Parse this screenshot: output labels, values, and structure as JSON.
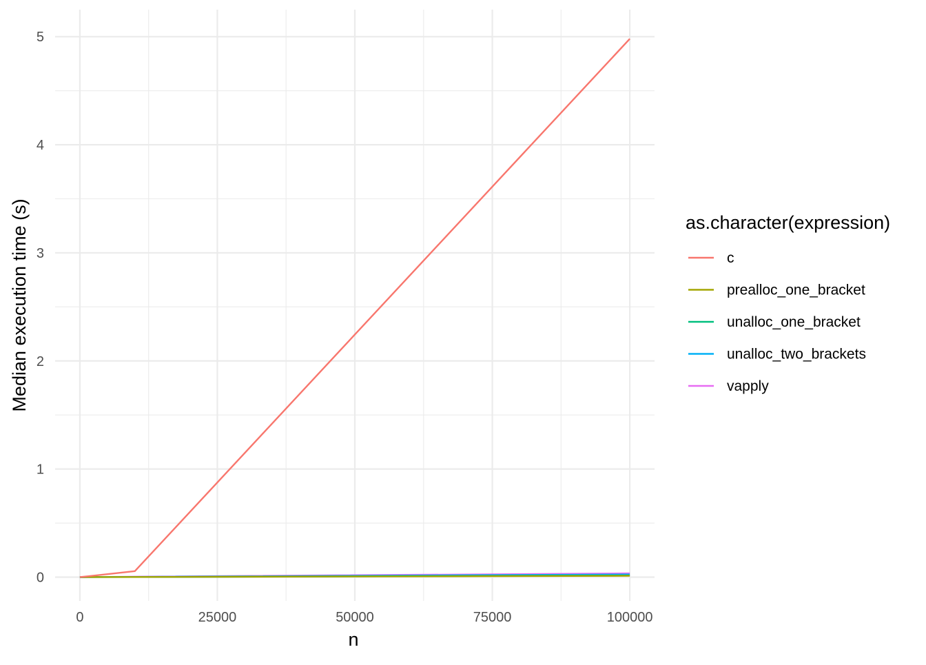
{
  "chart_data": {
    "type": "line",
    "title": "",
    "xlabel": "n",
    "ylabel": "Median execution time (s)",
    "xlim": [
      -4500,
      104500
    ],
    "ylim": [
      -0.22,
      5.25
    ],
    "x_ticks": [
      0,
      25000,
      50000,
      75000,
      100000
    ],
    "x_tick_labels": [
      "0",
      "25000",
      "50000",
      "75000",
      "100000"
    ],
    "x_minor_ticks": [
      12500,
      37500,
      62500,
      87500
    ],
    "y_ticks": [
      0,
      1,
      2,
      3,
      4,
      5
    ],
    "y_tick_labels": [
      "0",
      "1",
      "2",
      "3",
      "4",
      "5"
    ],
    "y_minor_ticks": [
      0.5,
      1.5,
      2.5,
      3.5,
      4.5
    ],
    "grid": true,
    "legend": {
      "title": "as.character(expression)",
      "position": "right"
    },
    "series": [
      {
        "name": "c",
        "color": "#F8766D",
        "x": [
          0,
          10000,
          100000
        ],
        "y": [
          0.0,
          0.055,
          4.98
        ]
      },
      {
        "name": "prealloc_one_bracket",
        "color": "#A3A500",
        "x": [
          0,
          10000,
          100000
        ],
        "y": [
          0.0,
          0.001,
          0.012
        ]
      },
      {
        "name": "unalloc_one_bracket",
        "color": "#00BF7D",
        "x": [
          0,
          10000,
          100000
        ],
        "y": [
          0.0,
          0.001,
          0.015
        ]
      },
      {
        "name": "unalloc_two_brackets",
        "color": "#00B0F6",
        "x": [
          0,
          10000,
          100000
        ],
        "y": [
          0.0,
          0.002,
          0.025
        ]
      },
      {
        "name": "vapply",
        "color": "#E76BF3",
        "x": [
          0,
          10000,
          100000
        ],
        "y": [
          0.0,
          0.004,
          0.035
        ]
      }
    ]
  }
}
